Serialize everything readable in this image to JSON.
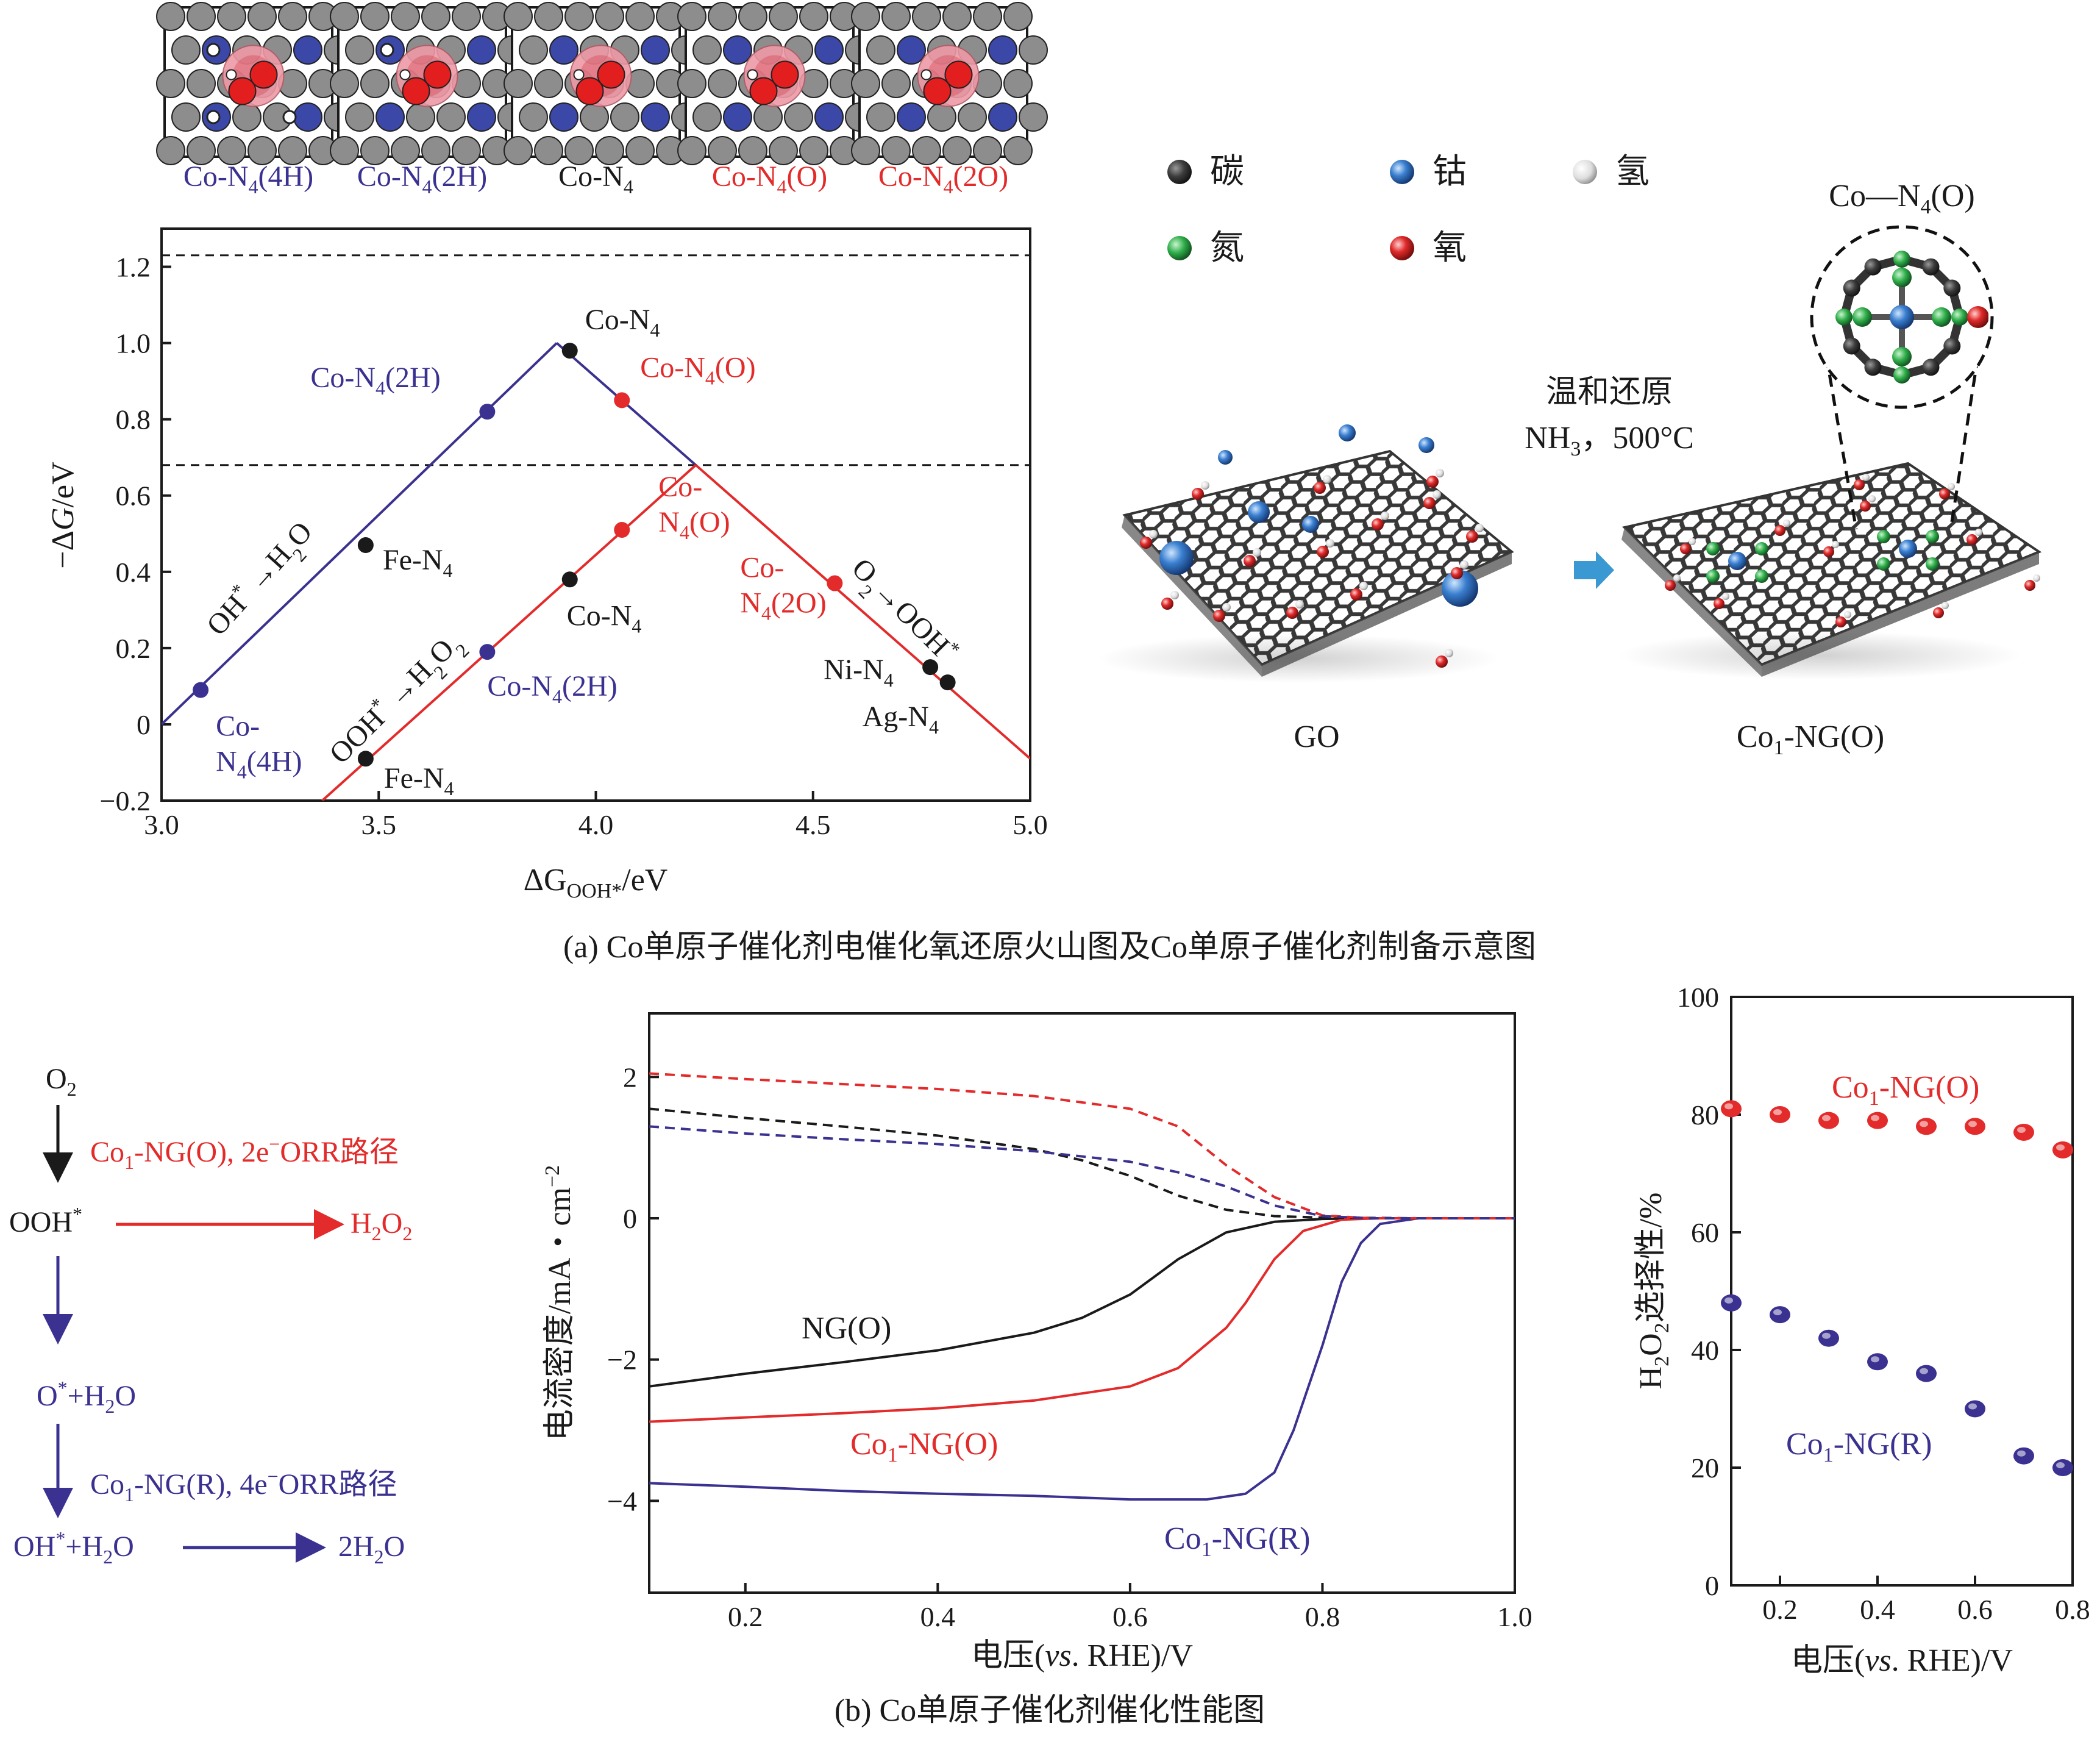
{
  "colors": {
    "purple": "#3a3190",
    "red": "#e32b2b",
    "black": "#1a1a1a",
    "blue_dash": "#3a3190",
    "carbon": "#3c3c3c",
    "cobalt": "#3a7fd0",
    "nitrogen": "#2fae4a",
    "oxygen": "#e02a2a",
    "hydrogen": "#e8e8e8"
  },
  "panel_a": {
    "structures": [
      {
        "label": "Co-N4(4H)",
        "base": "Co-N",
        "sub": "4",
        "suffix": "(4H)",
        "color": "purple"
      },
      {
        "label": "Co-N4(2H)",
        "base": "Co-N",
        "sub": "4",
        "suffix": "(2H)",
        "color": "purple"
      },
      {
        "label": "Co-N4",
        "base": "Co-N",
        "sub": "4",
        "suffix": "",
        "color": "black"
      },
      {
        "label": "Co-N4(O)",
        "base": "Co-N",
        "sub": "4",
        "suffix": "(O)",
        "color": "red"
      },
      {
        "label": "Co-N4(2O)",
        "base": "Co-N",
        "sub": "4",
        "suffix": "(2O)",
        "color": "red"
      }
    ],
    "caption": "(a) Co单原子催化剂电催化氧还原火山图及Co单原子催化剂制备示意图",
    "legend": [
      {
        "name": "碳",
        "color": "carbon"
      },
      {
        "name": "钴",
        "color": "cobalt"
      },
      {
        "name": "氢",
        "color": "hydrogen"
      },
      {
        "name": "氮",
        "color": "nitrogen"
      },
      {
        "name": "氧",
        "color": "oxygen"
      }
    ],
    "scheme": {
      "zoom_title": "Co—N4(O)",
      "zoom_title_base": "Co—N",
      "zoom_title_sub": "4",
      "zoom_title_suffix": "(O)",
      "condition_1": "温和还原",
      "condition_2_base": "NH",
      "condition_2_sub": "3",
      "condition_2_suffix": "，500°C",
      "left_label": "GO",
      "right_label_base": "Co",
      "right_label_sub": "1",
      "right_label_suffix": "-NG(O)"
    }
  },
  "panel_b": {
    "caption": "(b) Co单原子催化剂催化性能图",
    "pathway": {
      "o2": "O",
      "o2_sub": "2",
      "step1": "Co1-NG(O), 2e−ORR路径",
      "step1_a": "Co",
      "step1_sub": "1",
      "step1_b": "-NG(O), 2e",
      "step1_sup": "−",
      "step1_c": "ORR路径",
      "ooh": "OOH",
      "ooh_sup": "*",
      "h2o2_a": "H",
      "h2o2_sub1": "2",
      "h2o2_b": "O",
      "h2o2_sub2": "2",
      "o_h2o_a": "O",
      "o_h2o_sup": "*",
      "o_h2o_b": "+H",
      "o_h2o_sub": "2",
      "o_h2o_c": "O",
      "step2_a": "Co",
      "step2_sub": "1",
      "step2_b": "-NG(R), 4e",
      "step2_sup": "−",
      "step2_c": "ORR路径",
      "oh_a": "OH",
      "oh_sup": "*",
      "oh_b": "+H",
      "oh_sub": "2",
      "oh_c": "O",
      "h2o_a": "2H",
      "h2o_sub": "2",
      "h2o_b": "O"
    }
  },
  "chart_data": [
    {
      "id": "volcano",
      "type": "line",
      "title": "",
      "xlabel": "ΔG_OOH*/eV",
      "xlabel_a": "ΔG",
      "xlabel_sub": "OOH*",
      "xlabel_b": "/eV",
      "ylabel": "−ΔG/eV",
      "ylabel_a": "−Δ",
      "ylabel_i": "G",
      "ylabel_b": "/eV",
      "xlim": [
        3.0,
        5.0
      ],
      "ylim": [
        -0.2,
        1.3
      ],
      "xticks": [
        "3.0",
        "3.5",
        "4.0",
        "4.5",
        "5.0"
      ],
      "xtick_values": [
        3.0,
        3.5,
        4.0,
        4.5,
        5.0
      ],
      "yticks": [
        "−0.2",
        "0",
        "0.2",
        "0.4",
        "0.6",
        "0.8",
        "1.0",
        "1.2"
      ],
      "ytick_values": [
        -0.2,
        0,
        0.2,
        0.4,
        0.6,
        0.8,
        1.0,
        1.2
      ],
      "dashed_lines": [
        1.23,
        0.68
      ],
      "series": [
        {
          "name": "4e left branch",
          "color": "purple",
          "x": [
            3.0,
            3.91
          ],
          "y": [
            0.0,
            1.0
          ]
        },
        {
          "name": "4e right branch",
          "color": "purple",
          "x": [
            3.91,
            4.23
          ],
          "y": [
            1.0,
            0.68
          ]
        },
        {
          "name": "2e left branch",
          "color": "red",
          "x": [
            3.37,
            4.23
          ],
          "y": [
            -0.2,
            0.68
          ]
        },
        {
          "name": "2e right branch",
          "color": "red",
          "x": [
            4.23,
            5.0
          ],
          "y": [
            0.68,
            -0.09
          ]
        }
      ],
      "points": [
        {
          "name": "Co-N4(4H)",
          "x": 3.09,
          "y": 0.09,
          "color": "purple",
          "label_lines": [
            "Co-",
            "N4(4H)"
          ]
        },
        {
          "name": "Co-N4(2H)",
          "x": 3.75,
          "y": 0.82,
          "color": "purple",
          "label_lines": [
            "Co-N4(2H)"
          ]
        },
        {
          "name": "Co-N4",
          "x": 3.94,
          "y": 0.98,
          "color": "black",
          "label_lines": [
            "Co-N4"
          ]
        },
        {
          "name": "Co-N4(O)",
          "x": 4.06,
          "y": 0.85,
          "color": "red",
          "label_lines": [
            "Co-N4(O)"
          ]
        },
        {
          "name": "Fe-N4",
          "x": 3.47,
          "y": 0.47,
          "color": "black",
          "label_lines": [
            "Fe-N4"
          ]
        },
        {
          "name": "Co-N4(2H)",
          "x": 3.75,
          "y": 0.19,
          "color": "purple",
          "label_lines": [
            "Co-N4(2H)"
          ]
        },
        {
          "name": "Co-N4",
          "x": 3.94,
          "y": 0.38,
          "color": "black",
          "label_lines": [
            "Co-N4"
          ]
        },
        {
          "name": "Co-N4(O)",
          "x": 4.06,
          "y": 0.51,
          "color": "red",
          "label_lines": [
            "Co-",
            "N4(O)"
          ]
        },
        {
          "name": "Co-N4(2O)",
          "x": 4.55,
          "y": 0.37,
          "color": "red",
          "label_lines": [
            "Co-",
            "N4(2O)"
          ]
        },
        {
          "name": "Ni-N4",
          "x": 4.77,
          "y": 0.15,
          "color": "black",
          "label_lines": [
            "Ni-N4"
          ]
        },
        {
          "name": "Ag-N4",
          "x": 4.81,
          "y": 0.11,
          "color": "black",
          "label_lines": [
            "Ag-N4"
          ]
        },
        {
          "name": "Fe-N4",
          "x": 3.47,
          "y": -0.09,
          "color": "black",
          "label_lines": [
            "Fe-N4"
          ]
        }
      ],
      "annotations": [
        "OH*→H2O",
        "OOH*→H2O2",
        "O2→OOH*"
      ]
    },
    {
      "id": "lsv",
      "type": "line",
      "xlabel": "电压(vs. RHE)/V",
      "xlabel_a": "电压(",
      "xlabel_i": "vs",
      "xlabel_b": ". RHE)/V",
      "ylabel": "电流密度/mA・cm−2",
      "ylabel_a": "电流密度/mA・cm",
      "ylabel_sup": "−2",
      "xlim": [
        0.1,
        1.0
      ],
      "ylim": [
        -5.3,
        2.9
      ],
      "xticks": [
        "0.2",
        "0.4",
        "0.6",
        "0.8",
        "1.0"
      ],
      "xtick_values": [
        0.2,
        0.4,
        0.6,
        0.8,
        1.0
      ],
      "yticks": [
        "−4",
        "−2",
        "0",
        "2"
      ],
      "ytick_values": [
        -4,
        -2,
        0,
        2
      ],
      "series": [
        {
          "name": "NG(O)",
          "color": "black",
          "style": "solid",
          "x": [
            0.1,
            0.2,
            0.3,
            0.4,
            0.5,
            0.55,
            0.6,
            0.65,
            0.7,
            0.75,
            0.8,
            0.85,
            1.0
          ],
          "y": [
            -2.38,
            -2.2,
            -2.04,
            -1.87,
            -1.62,
            -1.41,
            -1.08,
            -0.58,
            -0.2,
            -0.05,
            -0.01,
            0,
            0
          ]
        },
        {
          "name": "Co1-NG(O)",
          "color": "red",
          "style": "solid",
          "x": [
            0.1,
            0.2,
            0.3,
            0.4,
            0.5,
            0.6,
            0.65,
            0.7,
            0.72,
            0.75,
            0.78,
            0.82,
            0.86,
            1.0
          ],
          "y": [
            -2.88,
            -2.82,
            -2.76,
            -2.69,
            -2.58,
            -2.38,
            -2.12,
            -1.55,
            -1.2,
            -0.58,
            -0.18,
            -0.02,
            0,
            0
          ]
        },
        {
          "name": "Co1-NG(R)",
          "color": "purple",
          "style": "solid",
          "x": [
            0.1,
            0.2,
            0.3,
            0.4,
            0.5,
            0.6,
            0.68,
            0.72,
            0.75,
            0.77,
            0.8,
            0.82,
            0.84,
            0.86,
            0.9,
            1.0
          ],
          "y": [
            -3.75,
            -3.8,
            -3.86,
            -3.9,
            -3.93,
            -3.98,
            -3.98,
            -3.9,
            -3.6,
            -3.0,
            -1.8,
            -0.9,
            -0.35,
            -0.08,
            0,
            0
          ]
        },
        {
          "name": "NG(O) ring",
          "color": "black",
          "style": "dashed",
          "x": [
            0.1,
            0.2,
            0.3,
            0.4,
            0.5,
            0.55,
            0.6,
            0.65,
            0.7,
            0.75,
            0.8,
            0.9,
            1.0
          ],
          "y": [
            1.55,
            1.42,
            1.3,
            1.17,
            0.98,
            0.82,
            0.6,
            0.32,
            0.12,
            0.03,
            0.01,
            0,
            0
          ]
        },
        {
          "name": "Co1-NG(O) ring",
          "color": "red",
          "style": "dashed",
          "x": [
            0.1,
            0.2,
            0.3,
            0.4,
            0.5,
            0.6,
            0.65,
            0.7,
            0.75,
            0.8,
            0.85,
            1.0
          ],
          "y": [
            2.05,
            1.97,
            1.9,
            1.83,
            1.73,
            1.55,
            1.3,
            0.75,
            0.3,
            0.04,
            0,
            0
          ]
        },
        {
          "name": "Co1-NG(R) ring",
          "color": "purple",
          "style": "dashed",
          "x": [
            0.1,
            0.2,
            0.3,
            0.4,
            0.5,
            0.6,
            0.65,
            0.7,
            0.75,
            0.8,
            0.85,
            1.0
          ],
          "y": [
            1.3,
            1.2,
            1.12,
            1.05,
            0.95,
            0.8,
            0.65,
            0.45,
            0.18,
            0.03,
            0,
            0
          ]
        }
      ],
      "labels": [
        {
          "text_a": "NG(O)",
          "color": "black"
        },
        {
          "text_a": "Co",
          "sub": "1",
          "text_b": "-NG(O)",
          "color": "red"
        },
        {
          "text_a": "Co",
          "sub": "1",
          "text_b": "-NG(R)",
          "color": "purple"
        }
      ]
    },
    {
      "id": "selectivity",
      "type": "scatter",
      "xlabel": "电压(vs. RHE)/V",
      "xlabel_a": "电压(",
      "xlabel_i": "vs",
      "xlabel_b": ". RHE)/V",
      "ylabel": "H2O2选择性/%",
      "ylabel_a": "H",
      "ylabel_sub1": "2",
      "ylabel_b": "O",
      "ylabel_sub2": "2",
      "ylabel_c": "选择性/%",
      "xlim": [
        0.1,
        0.8
      ],
      "ylim": [
        0,
        100
      ],
      "xticks": [
        "0.2",
        "0.4",
        "0.6",
        "0.8"
      ],
      "xtick_values": [
        0.2,
        0.4,
        0.6,
        0.8
      ],
      "yticks": [
        "0",
        "20",
        "40",
        "60",
        "80",
        "100"
      ],
      "ytick_values": [
        0,
        20,
        40,
        60,
        80,
        100
      ],
      "series": [
        {
          "name": "Co1-NG(O)",
          "color": "red",
          "x": [
            0.1,
            0.2,
            0.3,
            0.4,
            0.5,
            0.6,
            0.7,
            0.78
          ],
          "y": [
            81,
            80,
            79,
            79,
            78,
            78,
            77,
            74
          ]
        },
        {
          "name": "Co1-NG(R)",
          "color": "purple",
          "x": [
            0.1,
            0.2,
            0.3,
            0.4,
            0.5,
            0.6,
            0.7,
            0.78
          ],
          "y": [
            48,
            46,
            42,
            38,
            36,
            30,
            22,
            20
          ]
        }
      ],
      "labels": [
        {
          "text_a": "Co",
          "sub": "1",
          "text_b": "-NG(O)",
          "color": "red"
        },
        {
          "text_a": "Co",
          "sub": "1",
          "text_b": "-NG(R)",
          "color": "purple"
        }
      ]
    }
  ]
}
